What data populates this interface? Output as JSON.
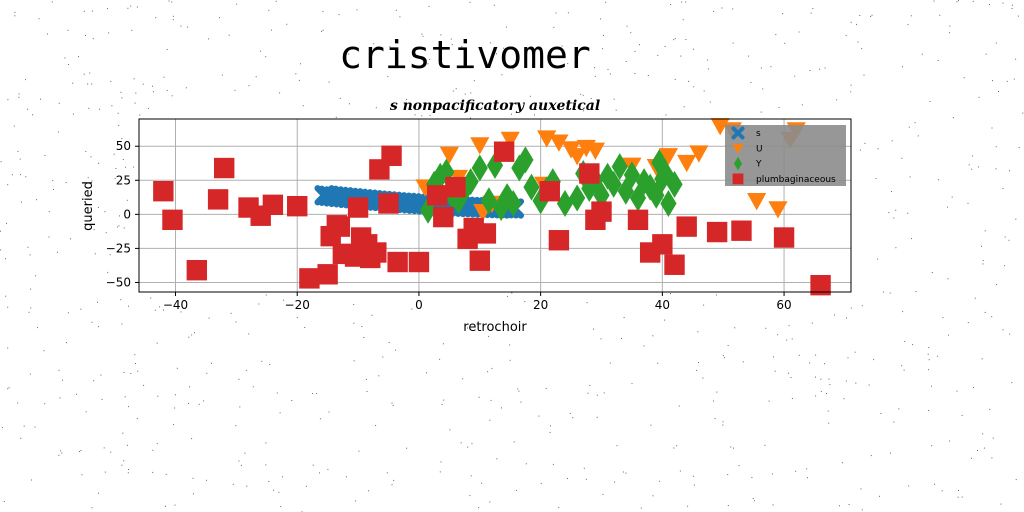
{
  "chart_data": {
    "type": "scatter",
    "title": "cristivomer",
    "subtitle": "s nonpacificatory auxetical",
    "xlabel": "retrochoir",
    "ylabel": "queried",
    "xlim": [
      -46,
      71
    ],
    "ylim": [
      -57,
      70
    ],
    "xticks": [
      -40,
      -20,
      0,
      20,
      40,
      60
    ],
    "yticks": [
      -50,
      -25,
      0,
      25,
      50
    ],
    "xtick_labels": [
      "−40",
      "−20",
      "0",
      "20",
      "40",
      "60"
    ],
    "ytick_labels": [
      "−50",
      "−25",
      "0",
      "25",
      "50"
    ],
    "grid": true,
    "legend_position": "top-right",
    "series": [
      {
        "name": "s",
        "color": "#1f77b4",
        "marker": "x",
        "points": [
          [
            -15.5,
            14
          ],
          [
            -14.8,
            13.6
          ],
          [
            -14,
            13.2
          ],
          [
            -13.2,
            12.8
          ],
          [
            -12.4,
            12.5
          ],
          [
            -11.6,
            12.1
          ],
          [
            -10.8,
            11.8
          ],
          [
            -10,
            11.4
          ],
          [
            -9.2,
            11.1
          ],
          [
            -8.4,
            10.8
          ],
          [
            -7.6,
            10.4
          ],
          [
            -6.8,
            10.1
          ],
          [
            -6,
            9.8
          ],
          [
            -5.2,
            9.5
          ],
          [
            -4.4,
            9.2
          ],
          [
            -3.6,
            8.9
          ],
          [
            -2.8,
            8.6
          ],
          [
            -2,
            8.4
          ],
          [
            -1.2,
            8.1
          ],
          [
            -0.4,
            7.8
          ],
          [
            0.4,
            7.6
          ],
          [
            1.2,
            7.3
          ],
          [
            2,
            7.1
          ],
          [
            2.8,
            6.8
          ],
          [
            3.6,
            6.6
          ],
          [
            4.4,
            6.4
          ],
          [
            5.2,
            6.2
          ],
          [
            6,
            6
          ],
          [
            6.8,
            5.8
          ],
          [
            7.6,
            5.6
          ],
          [
            8.4,
            5.4
          ],
          [
            9.2,
            5.3
          ],
          [
            10,
            5.1
          ],
          [
            10.8,
            5
          ],
          [
            11.6,
            4.9
          ],
          [
            12.4,
            4.7
          ],
          [
            13.2,
            4.6
          ],
          [
            14,
            4.5
          ],
          [
            14.8,
            4.4
          ],
          [
            15.6,
            4.3
          ]
        ]
      },
      {
        "name": "U",
        "color": "#ff7f0e",
        "marker": "triangle-down",
        "points": [
          [
            1,
            20
          ],
          [
            5,
            44
          ],
          [
            6.5,
            27
          ],
          [
            10,
            51
          ],
          [
            10.5,
            2
          ],
          [
            12,
            8
          ],
          [
            15,
            55
          ],
          [
            20.5,
            22
          ],
          [
            21,
            56
          ],
          [
            23,
            53
          ],
          [
            25,
            48
          ],
          [
            26,
            43
          ],
          [
            27.5,
            49
          ],
          [
            29,
            47
          ],
          [
            35,
            36
          ],
          [
            39,
            35
          ],
          [
            41,
            43
          ],
          [
            44,
            38
          ],
          [
            46,
            45
          ],
          [
            49.5,
            65
          ],
          [
            51.5,
            62
          ],
          [
            55.5,
            10
          ],
          [
            59,
            4
          ],
          [
            61,
            55
          ],
          [
            62,
            62
          ]
        ]
      },
      {
        "name": "Y",
        "color": "#2ca02c",
        "marker": "diamond",
        "points": [
          [
            1.5,
            3
          ],
          [
            2.5,
            22
          ],
          [
            3.5,
            28
          ],
          [
            4.5,
            31
          ],
          [
            5.5,
            14
          ],
          [
            6.5,
            10
          ],
          [
            7.5,
            18
          ],
          [
            8.5,
            24
          ],
          [
            10,
            34
          ],
          [
            11.5,
            10
          ],
          [
            12.5,
            36
          ],
          [
            13.5,
            5
          ],
          [
            14.5,
            13
          ],
          [
            15.5,
            8
          ],
          [
            16.5,
            34
          ],
          [
            17.5,
            40
          ],
          [
            18.5,
            20
          ],
          [
            20,
            10
          ],
          [
            21,
            18
          ],
          [
            22,
            24
          ],
          [
            24,
            8
          ],
          [
            26,
            12
          ],
          [
            27,
            30
          ],
          [
            28,
            19
          ],
          [
            29,
            25
          ],
          [
            30,
            14
          ],
          [
            31,
            28
          ],
          [
            32,
            22
          ],
          [
            33,
            35
          ],
          [
            34,
            17
          ],
          [
            35,
            29
          ],
          [
            36,
            12
          ],
          [
            37,
            24
          ],
          [
            38,
            20
          ],
          [
            39,
            14
          ],
          [
            39.5,
            38
          ],
          [
            40,
            26
          ],
          [
            40.5,
            30
          ],
          [
            41,
            8
          ],
          [
            42,
            22
          ]
        ]
      },
      {
        "name": "plumbaginaceous",
        "color": "#d62728",
        "marker": "square",
        "points": [
          [
            -42,
            17
          ],
          [
            -40.5,
            -4
          ],
          [
            -36.5,
            -41
          ],
          [
            -33,
            11
          ],
          [
            -32,
            34
          ],
          [
            -28,
            5
          ],
          [
            -26,
            -1
          ],
          [
            -24,
            7
          ],
          [
            -20,
            6
          ],
          [
            -18,
            -47
          ],
          [
            -15,
            -44
          ],
          [
            -14.5,
            -16
          ],
          [
            -13.5,
            -8
          ],
          [
            -13,
            -9
          ],
          [
            -12.5,
            -29
          ],
          [
            -10.5,
            -31
          ],
          [
            -10,
            5
          ],
          [
            -9.5,
            -17
          ],
          [
            -8.5,
            -22
          ],
          [
            -8,
            -32
          ],
          [
            -7,
            -28
          ],
          [
            -6.5,
            33
          ],
          [
            -5,
            8
          ],
          [
            -4.5,
            43
          ],
          [
            -3.5,
            -35
          ],
          [
            0,
            -35
          ],
          [
            3,
            14
          ],
          [
            4,
            -2
          ],
          [
            6,
            20
          ],
          [
            8,
            -18
          ],
          [
            9,
            -10
          ],
          [
            10,
            -34
          ],
          [
            11,
            -14
          ],
          [
            14,
            46
          ],
          [
            21.5,
            17
          ],
          [
            23,
            -19
          ],
          [
            28,
            30
          ],
          [
            29,
            -4
          ],
          [
            30,
            2
          ],
          [
            36,
            -4
          ],
          [
            38,
            -28
          ],
          [
            40,
            -22
          ],
          [
            42,
            -37
          ],
          [
            44,
            -9
          ],
          [
            49,
            -13
          ],
          [
            53,
            -12
          ],
          [
            60,
            -17
          ],
          [
            66,
            -52
          ]
        ]
      }
    ]
  }
}
